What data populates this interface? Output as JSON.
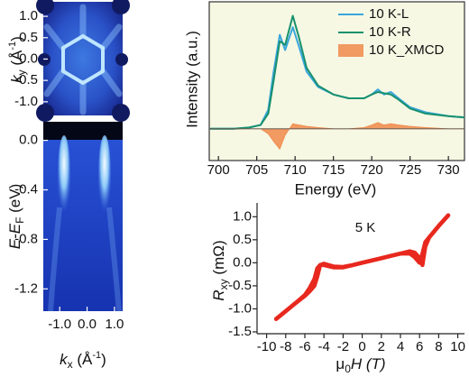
{
  "chart_data": [
    {
      "type": "image",
      "ylabel": [
        "k",
        "y",
        " (Å",
        "-1",
        ")"
      ],
      "ylim": [
        -1.32,
        1.34
      ],
      "yticks": [
        {
          "value": 1,
          "label": "1.0"
        },
        {
          "value": 0.5,
          "label": "0.5"
        },
        {
          "value": 0,
          "label": "0.0"
        },
        {
          "value": -0.5,
          "label": "-0.5"
        },
        {
          "value": -1,
          "label": "-1.0"
        }
      ]
    },
    {
      "type": "image",
      "xlabel": [
        "k",
        "x",
        " (Å",
        "-1",
        ")"
      ],
      "ylabel": [
        "E-E",
        "F",
        " (eV)"
      ],
      "xlim": [
        -1.6,
        1.3
      ],
      "xticks": [
        {
          "value": -1,
          "label": "-1.0"
        },
        {
          "value": 0,
          "label": "0.0"
        },
        {
          "value": 1,
          "label": "1.0"
        }
      ],
      "ylim": [
        -1.38,
        0.15
      ],
      "yticks": [
        {
          "value": 0,
          "label": "0.0"
        },
        -0.4,
        -0.8,
        -1.2
      ]
    },
    {
      "type": "line",
      "xlabel": "Energy (eV)",
      "ylabel": "Intensity (a.u.)",
      "background": "#f6f8e3",
      "legend": "upper right",
      "xlim": [
        698.8,
        732.1
      ],
      "xticks": [
        700,
        705,
        710,
        715,
        720,
        725,
        730
      ],
      "ylim": [
        -0.25,
        1.0
      ],
      "x": [
        699,
        702,
        704,
        705.5,
        706.5,
        707.2,
        708,
        708.7,
        709.7,
        710.5,
        711.5,
        713,
        715,
        717,
        719,
        720,
        720.8,
        721.6,
        722.5,
        723.5,
        725,
        727,
        730,
        732
      ],
      "series": [
        {
          "name": "10 K-L",
          "color": "#3aa6dc",
          "values": [
            0,
            0,
            0.01,
            0.03,
            0.15,
            0.45,
            0.74,
            0.62,
            0.8,
            0.65,
            0.45,
            0.33,
            0.27,
            0.24,
            0.24,
            0.27,
            0.31,
            0.27,
            0.29,
            0.24,
            0.17,
            0.13,
            0.1,
            0.09
          ]
        },
        {
          "name": "10 K-R",
          "color": "#17906e",
          "values": [
            0,
            0,
            0.01,
            0.03,
            0.12,
            0.38,
            0.69,
            0.66,
            0.89,
            0.72,
            0.48,
            0.34,
            0.27,
            0.24,
            0.24,
            0.27,
            0.29,
            0.28,
            0.27,
            0.23,
            0.16,
            0.12,
            0.1,
            0.09
          ]
        },
        {
          "name": "10 K_XMCD",
          "color": "#f08a4b",
          "type": "area",
          "values": [
            0,
            0,
            0,
            0,
            -0.04,
            -0.1,
            -0.16,
            -0.05,
            0.04,
            0.03,
            0.02,
            0.01,
            0,
            0,
            0.01,
            0.03,
            0.05,
            0.03,
            0.04,
            0.03,
            0.02,
            0.01,
            0,
            0
          ]
        }
      ]
    },
    {
      "type": "line",
      "xlabel": [
        "μ",
        "0",
        "H (T)"
      ],
      "ylabel": [
        "R",
        "xy",
        " (mΩ)"
      ],
      "annotation": "5 K",
      "fill_color": "#f4c35a",
      "xlim": [
        -11,
        10.7
      ],
      "xticks": [
        -10,
        -8,
        -6,
        -4,
        -2,
        0,
        2,
        4,
        6,
        8,
        10
      ],
      "ylim": [
        -1.54,
        1.3
      ],
      "yticks": [
        {
          "value": 1,
          "label": "1.0"
        },
        0.5,
        {
          "value": 0,
          "label": "0.0"
        },
        -0.5,
        {
          "value": -1,
          "label": "-1.0"
        },
        -1.5
      ],
      "x": [
        -9,
        -8,
        -7,
        -6,
        -5.5,
        -5,
        -4.7,
        -4.4,
        -4,
        -3,
        -2,
        -1,
        0,
        1,
        2,
        3,
        4,
        5,
        5.5,
        6,
        6.3,
        6.6,
        7,
        8,
        9
      ],
      "series": [
        {
          "color": "#e8281e",
          "values": [
            -1.22,
            -1.05,
            -0.88,
            -0.72,
            -0.62,
            -0.5,
            -0.3,
            -0.05,
            -0.02,
            -0.08,
            -0.09,
            -0.05,
            0,
            0.05,
            0.1,
            0.15,
            0.2,
            0.2,
            0.12,
            0.0,
            0.2,
            0.45,
            0.55,
            0.8,
            1.03
          ]
        },
        {
          "color": "#e8281e",
          "values": [
            -1.22,
            -1.05,
            -0.88,
            -0.7,
            -0.55,
            -0.35,
            -0.12,
            -0.05,
            -0.05,
            -0.1,
            -0.1,
            -0.05,
            0,
            0.05,
            0.1,
            0.15,
            0.2,
            0.25,
            0.22,
            0.1,
            -0.05,
            0.35,
            0.55,
            0.8,
            1.03
          ]
        }
      ]
    }
  ]
}
